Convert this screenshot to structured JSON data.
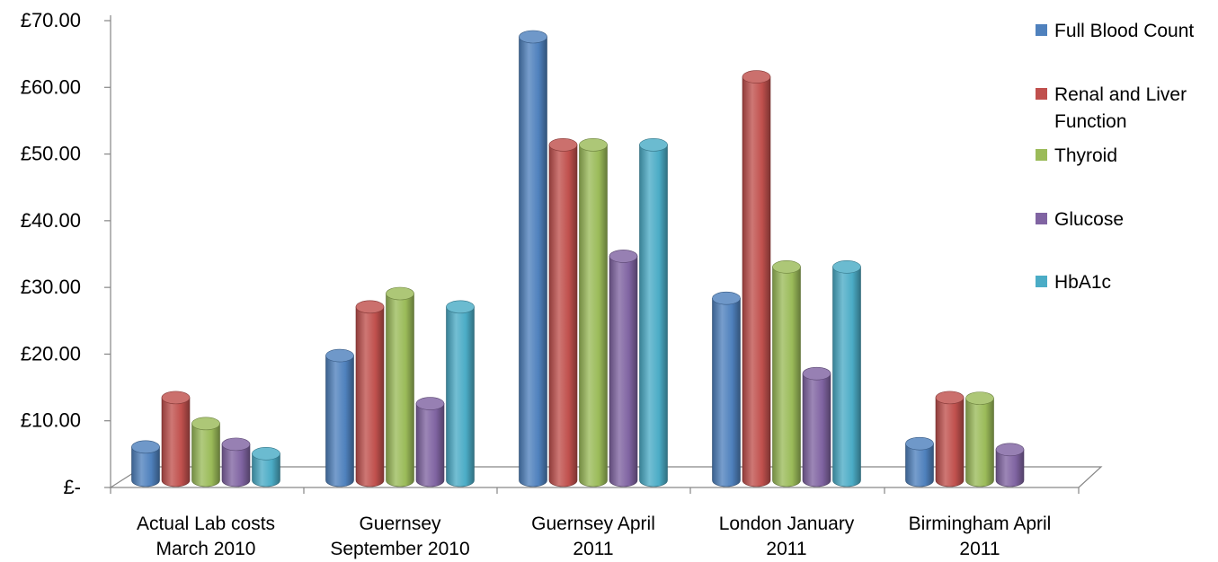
{
  "chart_data": {
    "type": "bar",
    "categories": [
      [
        "Actual Lab costs",
        "March 2010"
      ],
      [
        "Guernsey",
        "September 2010"
      ],
      [
        "Guernsey April",
        "2011"
      ],
      [
        "London January",
        "2011"
      ],
      [
        "Birmingham April",
        "2011"
      ]
    ],
    "series": [
      {
        "name": [
          "Full Blood Count"
        ],
        "color": "#4F81BD",
        "values": [
          5.0,
          18.7,
          66.5,
          27.3,
          5.5
        ]
      },
      {
        "name": [
          "Renal and Liver",
          "Function"
        ],
        "color": "#C0504D",
        "values": [
          12.4,
          26.0,
          50.3,
          60.5,
          12.4
        ]
      },
      {
        "name": [
          "Thyroid"
        ],
        "color": "#9BBB59",
        "values": [
          8.5,
          28.0,
          50.3,
          32.0,
          12.3
        ]
      },
      {
        "name": [
          "Glucose"
        ],
        "color": "#8064A2",
        "values": [
          5.4,
          11.5,
          33.6,
          16.0,
          4.6
        ]
      },
      {
        "name": [
          "HbA1c"
        ],
        "color": "#4BACC6",
        "values": [
          4.0,
          26.0,
          50.3,
          32.0,
          null
        ]
      }
    ],
    "y_ticks": [
      "£-",
      "£10.00",
      "£20.00",
      "£30.00",
      "£40.00",
      "£50.00",
      "£60.00",
      "£70.00"
    ],
    "ylim": [
      0,
      70
    ],
    "legend_position": "right",
    "grid": false,
    "style": "3d-cylinder"
  }
}
